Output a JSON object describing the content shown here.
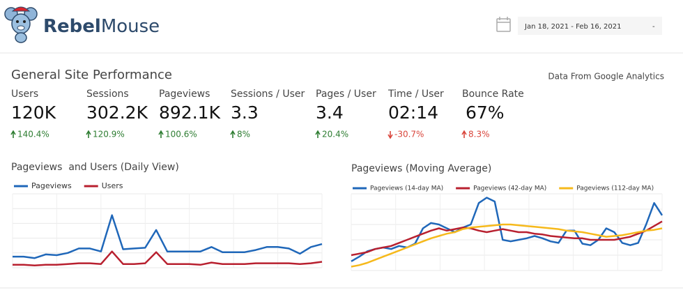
{
  "header": {
    "brand_bold": "Rebel",
    "brand_light": "Mouse",
    "date_range": "Jan 18, 2021 - Feb 16, 2021",
    "dropdown": "-"
  },
  "section": {
    "title": "General Site Performance",
    "source": "Data From Google Analytics"
  },
  "metrics": [
    {
      "label": "Users",
      "value": "120K",
      "change": "140.4%",
      "direction": "up"
    },
    {
      "label": "Sessions",
      "value": "302.2K",
      "change": "120.9%",
      "direction": "up"
    },
    {
      "label": "Pageviews",
      "value": "892.1K",
      "change": "100.6%",
      "direction": "up"
    },
    {
      "label": "Sessions / User",
      "value": "3.3",
      "change": "8%",
      "direction": "up"
    },
    {
      "label": "Pages / User",
      "value": "3.4",
      "change": "20.4%",
      "direction": "up"
    },
    {
      "label": "Time / User",
      "value": "02:14",
      "change": "-30.7%",
      "direction": "down"
    },
    {
      "label": "Bounce Rate",
      "value": "67%",
      "change": "8.3%",
      "direction": "up-bad"
    }
  ],
  "chart_data": [
    {
      "type": "line",
      "title": "Pageviews  and Users (Daily View)",
      "ylim": [
        0,
        100
      ],
      "grid": true,
      "legend": "top-left",
      "series": [
        {
          "name": "Pageviews",
          "color": "#1f67b9",
          "values": [
            15,
            15,
            13,
            18,
            17,
            20,
            26,
            26,
            22,
            71,
            25,
            26,
            27,
            51,
            22,
            22,
            22,
            22,
            28,
            21,
            21,
            21,
            24,
            28,
            28,
            26,
            19,
            28,
            32
          ]
        },
        {
          "name": "Users",
          "color": "#b8202f",
          "values": [
            4,
            4,
            3,
            4,
            4,
            5,
            6,
            6,
            5,
            22,
            5,
            5,
            6,
            21,
            5,
            5,
            5,
            4,
            7,
            5,
            5,
            5,
            6,
            6,
            6,
            6,
            5,
            6,
            8
          ]
        }
      ]
    },
    {
      "type": "line",
      "title": "Pageviews (Moving Average)",
      "ylim": [
        0,
        100
      ],
      "grid": true,
      "legend": "top",
      "series": [
        {
          "name": "Pageviews (14-day MA)",
          "color": "#1f67b9",
          "values": [
            12,
            18,
            25,
            28,
            30,
            28,
            32,
            30,
            35,
            55,
            62,
            60,
            55,
            50,
            56,
            60,
            88,
            95,
            90,
            40,
            38,
            40,
            42,
            45,
            42,
            38,
            36,
            52,
            52,
            35,
            33,
            40,
            55,
            50,
            36,
            33,
            36,
            60,
            88,
            72
          ]
        },
        {
          "name": "Pageviews (42-day MA)",
          "color": "#b8202f",
          "values": [
            20,
            22,
            24,
            28,
            30,
            32,
            36,
            40,
            44,
            48,
            52,
            55,
            52,
            54,
            56,
            55,
            52,
            50,
            52,
            54,
            52,
            50,
            50,
            48,
            47,
            45,
            44,
            43,
            42,
            42,
            40,
            40,
            40,
            40,
            42,
            44,
            48,
            52,
            58,
            64
          ]
        },
        {
          "name": "Pageviews (112-day MA)",
          "color": "#f6b91b",
          "values": [
            5,
            7,
            10,
            14,
            18,
            22,
            26,
            30,
            34,
            38,
            42,
            45,
            48,
            50,
            54,
            56,
            57,
            58,
            59,
            60,
            60,
            59,
            58,
            57,
            56,
            55,
            54,
            52,
            51,
            50,
            48,
            46,
            44,
            45,
            46,
            48,
            50,
            52,
            53,
            55
          ]
        }
      ]
    }
  ]
}
